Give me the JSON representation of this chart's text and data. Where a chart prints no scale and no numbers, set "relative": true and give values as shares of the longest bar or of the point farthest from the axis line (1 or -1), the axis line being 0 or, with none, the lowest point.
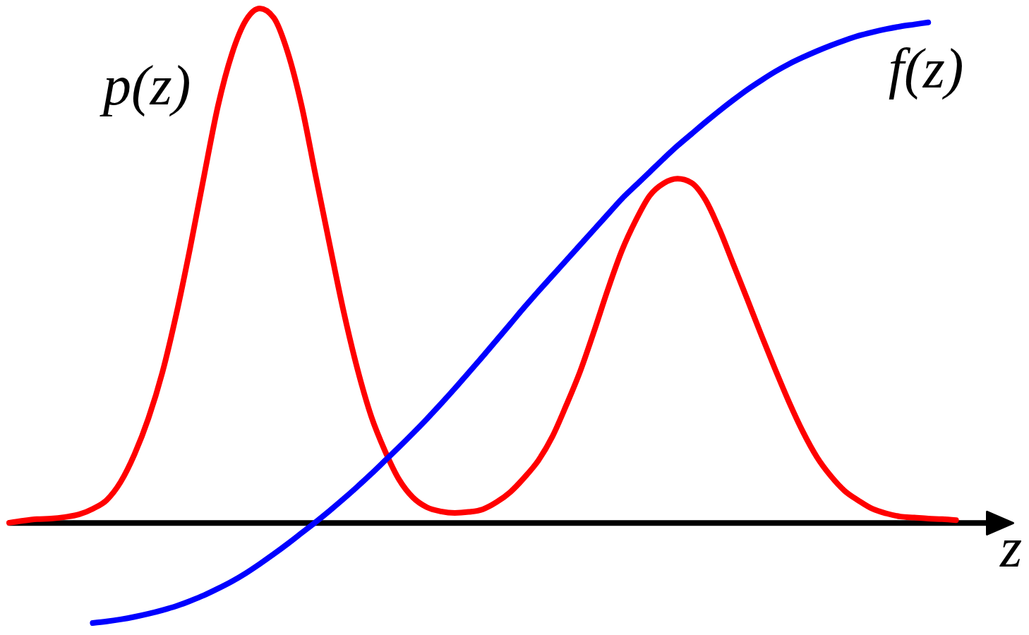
{
  "chart_data": {
    "type": "line",
    "xlabel": "z",
    "relative": true,
    "categories": [
      null,
      null,
      null,
      null,
      null,
      null,
      null,
      null,
      null,
      null,
      null,
      null,
      null,
      null,
      null,
      null,
      null,
      null,
      null,
      null,
      null,
      null,
      null,
      null,
      null,
      null,
      null,
      null,
      null,
      null,
      null,
      null,
      null,
      null,
      null,
      null,
      null,
      null,
      null,
      null,
      null,
      null,
      null,
      null,
      null,
      null,
      null,
      null,
      null,
      null,
      null,
      null,
      null,
      null,
      null,
      null,
      null,
      null,
      null,
      null,
      null,
      null,
      null,
      null,
      null,
      null,
      null,
      null,
      null
    ],
    "series": [
      {
        "name": "p(z)",
        "color": "#ff0000",
        "values": [
          0,
          0.004,
          0.007,
          0.008,
          0.011,
          0.016,
          0.027,
          0.044,
          0.079,
          0.133,
          0.203,
          0.292,
          0.405,
          0.535,
          0.675,
          0.811,
          0.912,
          0.977,
          1,
          0.982,
          0.915,
          0.811,
          0.676,
          0.543,
          0.413,
          0.3,
          0.207,
          0.139,
          0.084,
          0.049,
          0.03,
          0.022,
          0.019,
          0.021,
          0.026,
          0.04,
          0.06,
          0.088,
          0.121,
          0.167,
          0.228,
          0.294,
          0.372,
          0.454,
          0.529,
          0.588,
          0.636,
          0.66,
          0.669,
          0.661,
          0.628,
          0.571,
          0.503,
          0.435,
          0.366,
          0.299,
          0.235,
          0.177,
          0.128,
          0.091,
          0.062,
          0.043,
          0.027,
          0.018,
          0.012,
          0.01,
          0.008,
          0.007,
          0.005
        ]
      },
      {
        "name": "f(z)",
        "color": "#0000ff",
        "values": [
          null,
          null,
          null,
          null,
          null,
          null,
          -0.195,
          -0.192,
          -0.188,
          -0.183,
          -0.177,
          -0.17,
          -0.162,
          -0.152,
          -0.141,
          -0.128,
          -0.114,
          -0.098,
          -0.08,
          -0.061,
          -0.041,
          -0.02,
          0.001,
          0.023,
          0.046,
          0.07,
          0.095,
          0.121,
          0.147,
          0.174,
          0.202,
          0.231,
          0.261,
          0.292,
          0.323,
          0.355,
          0.387,
          0.419,
          0.45,
          0.48,
          0.51,
          0.54,
          0.57,
          0.6,
          0.63,
          0.656,
          0.682,
          0.708,
          0.733,
          0.756,
          0.779,
          0.801,
          0.822,
          0.842,
          0.86,
          0.877,
          0.892,
          0.905,
          0.917,
          0.928,
          0.938,
          0.947,
          0.954,
          0.96,
          0.965,
          0.969,
          0.973,
          null,
          null
        ]
      }
    ]
  }
}
